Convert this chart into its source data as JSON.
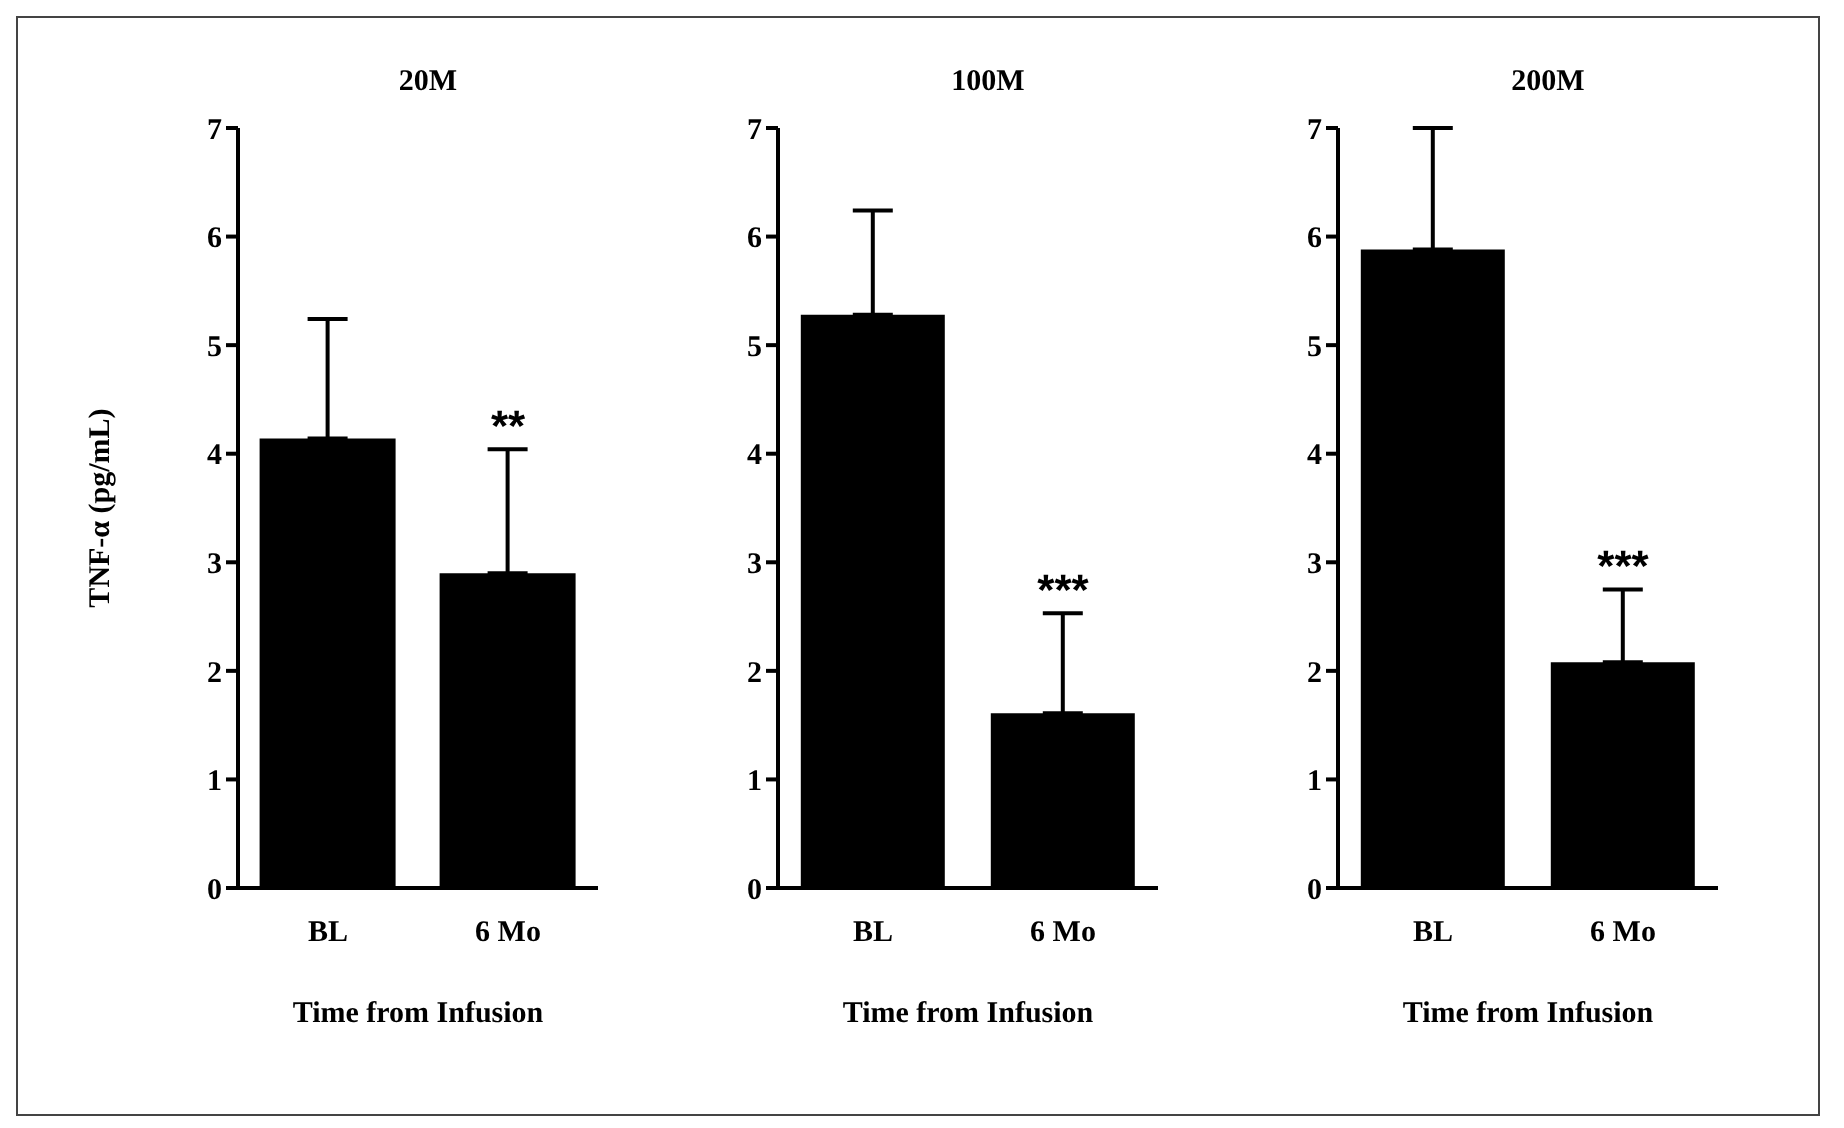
{
  "chart_data": [
    {
      "type": "bar",
      "title": "20M",
      "ylabel": "TNF-α (pg/mL)",
      "xlabel": "Time from Infusion",
      "categories": [
        "BL",
        "6 Mo"
      ],
      "values": [
        4.14,
        2.9
      ],
      "errors": [
        [
          4.14,
          5.24
        ],
        [
          2.9,
          4.04
        ]
      ],
      "color": "#000000",
      "ylim": [
        0,
        7
      ],
      "yticks": [
        0,
        1,
        2,
        3,
        4,
        5,
        6,
        7
      ],
      "grid": false,
      "legend": false,
      "annotations": [
        "**"
      ]
    },
    {
      "type": "bar",
      "title": "100M",
      "xlabel": "Time from Infusion",
      "categories": [
        "BL",
        "6 Mo"
      ],
      "values": [
        5.28,
        1.61
      ],
      "errors": [
        [
          5.28,
          6.24
        ],
        [
          1.61,
          2.53
        ]
      ],
      "color": "#000000",
      "ylim": [
        0,
        7
      ],
      "yticks": [
        0,
        1,
        2,
        3,
        4,
        5,
        6,
        7
      ],
      "grid": false,
      "legend": false,
      "annotations": [
        "***"
      ]
    },
    {
      "type": "bar",
      "title": "200M",
      "xlabel": "Time from Infusion",
      "categories": [
        "BL",
        "6 Mo"
      ],
      "values": [
        5.88,
        2.08
      ],
      "errors": [
        [
          5.88,
          7.0
        ],
        [
          2.08,
          2.75
        ]
      ],
      "color": "#000000",
      "ylim": [
        0,
        7
      ],
      "yticks": [
        0,
        1,
        2,
        3,
        4,
        5,
        6,
        7
      ],
      "grid": false,
      "legend": false,
      "annotations": [
        "***"
      ]
    }
  ]
}
